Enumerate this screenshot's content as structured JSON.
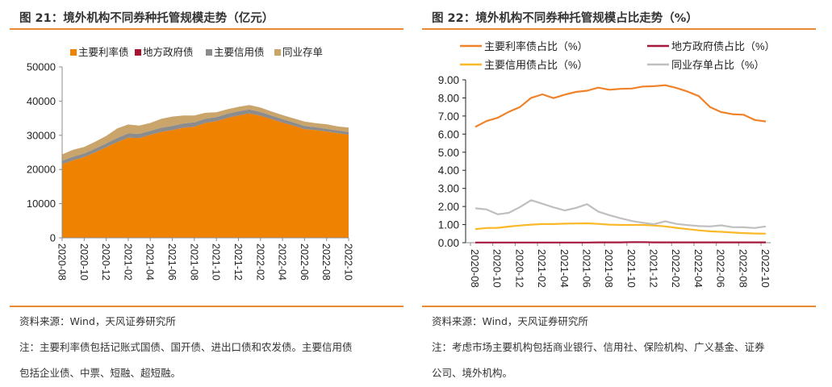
{
  "left": {
    "title": "图 21：境外机构不同券种托管规模走势（亿元）",
    "source": "资料来源：Wind，天风证券研究所",
    "note_line1": "注：主要利率债包括记账式国债、国开债、进出口债和农发债。主要信用债",
    "note_line2": "包括企业债、中票、短融、超短融。"
  },
  "right": {
    "title": "图 22：境外机构不同券种托管规模占比走势（%）",
    "source": "资料来源：Wind，天风证券研究所",
    "note_line1": "注：考虑市场主要机构包括商业银行、信用社、保险机构、广义基金、证券",
    "note_line2": "公司、境外机构。"
  },
  "accent_color": "#e98a2e",
  "chart_data": [
    {
      "type": "area",
      "stacked": true,
      "title": "境外机构不同券种托管规模走势（亿元）",
      "xlabel": "",
      "ylabel": "",
      "ylim": [
        0,
        50000
      ],
      "yticks": [
        "0",
        "10000",
        "20000",
        "30000",
        "40000",
        "50000"
      ],
      "xtick_labels": [
        "2020-08",
        "2020-10",
        "2020-12",
        "2021-02",
        "2021-04",
        "2021-06",
        "2021-08",
        "2021-10",
        "2021-12",
        "2022-02",
        "2022-04",
        "2022-06",
        "2022-08",
        "2022-10"
      ],
      "legend_position": "top",
      "x": [
        "2020-08",
        "2020-09",
        "2020-10",
        "2020-11",
        "2020-12",
        "2021-01",
        "2021-02",
        "2021-03",
        "2021-04",
        "2021-05",
        "2021-06",
        "2021-07",
        "2021-08",
        "2021-09",
        "2021-10",
        "2021-11",
        "2021-12",
        "2022-01",
        "2022-02",
        "2022-03",
        "2022-04",
        "2022-05",
        "2022-06",
        "2022-07",
        "2022-08",
        "2022-09",
        "2022-10"
      ],
      "series": [
        {
          "name": "主要利率债",
          "color": "#ef8200",
          "values": [
            21500,
            22700,
            23600,
            25000,
            26500,
            28000,
            29300,
            29200,
            30100,
            31000,
            31500,
            32200,
            32500,
            33600,
            34100,
            35100,
            35800,
            36400,
            35700,
            34700,
            33700,
            32800,
            31800,
            31500,
            31100,
            30600,
            30200
          ]
        },
        {
          "name": "地方政府债",
          "color": "#a6122f",
          "values": [
            20,
            20,
            20,
            20,
            20,
            20,
            20,
            20,
            20,
            20,
            20,
            20,
            20,
            20,
            20,
            20,
            20,
            20,
            20,
            20,
            20,
            20,
            20,
            20,
            20,
            20,
            20
          ]
        },
        {
          "name": "主要信用债",
          "color": "#8c8c8c",
          "values": [
            1000,
            1050,
            1050,
            1100,
            1100,
            1200,
            1250,
            1200,
            1200,
            1200,
            1250,
            1250,
            1250,
            1250,
            1200,
            1200,
            1200,
            1150,
            1100,
            1050,
            1000,
            950,
            900,
            850,
            800,
            800,
            750
          ]
        },
        {
          "name": "同业存单",
          "color": "#c9a46b",
          "values": [
            1900,
            2000,
            1900,
            2000,
            2200,
            2800,
            2600,
            2400,
            2300,
            2600,
            2700,
            2300,
            2000,
            1700,
            1400,
            1300,
            1300,
            1300,
            1300,
            1200,
            1200,
            1200,
            1300,
            1200,
            1300,
            1200,
            1300
          ]
        }
      ]
    },
    {
      "type": "line",
      "title": "境外机构不同券种托管规模占比走势（%）",
      "xlabel": "",
      "ylabel": "",
      "ylim": [
        0,
        9
      ],
      "yticks": [
        "0.00",
        "1.00",
        "2.00",
        "3.00",
        "4.00",
        "5.00",
        "6.00",
        "7.00",
        "8.00",
        "9.00"
      ],
      "xtick_labels": [
        "2020-08",
        "2020-10",
        "2020-12",
        "2021-02",
        "2021-04",
        "2021-06",
        "2021-08",
        "2021-10",
        "2021-12",
        "2022-02",
        "2022-04",
        "2022-06",
        "2022-08",
        "2022-10"
      ],
      "legend_position": "top",
      "x": [
        "2020-08",
        "2020-09",
        "2020-10",
        "2020-11",
        "2020-12",
        "2021-01",
        "2021-02",
        "2021-03",
        "2021-04",
        "2021-05",
        "2021-06",
        "2021-07",
        "2021-08",
        "2021-09",
        "2021-10",
        "2021-11",
        "2021-12",
        "2022-01",
        "2022-02",
        "2022-03",
        "2022-04",
        "2022-05",
        "2022-06",
        "2022-07",
        "2022-08",
        "2022-09",
        "2022-10"
      ],
      "series": [
        {
          "name": "主要利率债占比（%）",
          "color": "#f0832a",
          "values": [
            6.4,
            6.72,
            6.9,
            7.23,
            7.5,
            8.0,
            8.2,
            7.99,
            8.18,
            8.33,
            8.4,
            8.57,
            8.45,
            8.5,
            8.52,
            8.63,
            8.65,
            8.7,
            8.55,
            8.35,
            8.1,
            7.5,
            7.22,
            7.1,
            7.07,
            6.78,
            6.7
          ]
        },
        {
          "name": "地方政府债占比（%）",
          "color": "#a6193c",
          "values": [
            0.01,
            0.01,
            0.01,
            0.01,
            0.01,
            0.01,
            0.01,
            0.01,
            0.01,
            0.01,
            0.01,
            0.02,
            0.02,
            0.02,
            0.03,
            0.03,
            0.02,
            0.02,
            0.02,
            0.02,
            0.02,
            0.02,
            0.02,
            0.02,
            0.02,
            0.02,
            0.02
          ]
        },
        {
          "name": "主要信用债占比（%）",
          "color": "#fbb828",
          "values": [
            0.75,
            0.81,
            0.82,
            0.89,
            0.95,
            1.0,
            1.03,
            1.03,
            1.05,
            1.06,
            1.07,
            1.04,
            1.0,
            0.98,
            0.98,
            0.98,
            0.95,
            0.9,
            0.82,
            0.75,
            0.68,
            0.63,
            0.6,
            0.56,
            0.53,
            0.51,
            0.5
          ]
        },
        {
          "name": "同业存单占比（%）",
          "color": "#bfbfbf",
          "values": [
            1.9,
            1.84,
            1.57,
            1.65,
            1.97,
            2.35,
            2.15,
            1.95,
            1.78,
            1.92,
            2.13,
            1.72,
            1.52,
            1.35,
            1.2,
            1.1,
            1.02,
            1.18,
            1.04,
            0.97,
            0.92,
            0.9,
            0.96,
            0.86,
            0.85,
            0.81,
            0.9
          ]
        }
      ]
    }
  ]
}
